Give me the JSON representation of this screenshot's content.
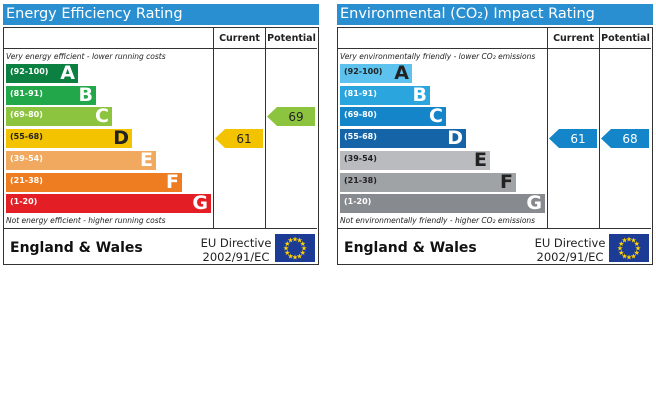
{
  "colors": {
    "title_bar": "#2a8fd0",
    "energy_bands": [
      "#0c8040",
      "#22a74a",
      "#8cc43f",
      "#f3c300",
      "#f1a85f",
      "#ee7d22",
      "#e31e25"
    ],
    "environment_bands": [
      "#5dc3ee",
      "#2aa5de",
      "#1585c9",
      "#1664a8",
      "#b9bbbe",
      "#a0a3a6",
      "#878a8e"
    ],
    "current_arrow": "#f3c300",
    "potential_arrow": "#8cc43f",
    "env_arrow": "#1585c9",
    "flag": "#1c3b94",
    "stars": "#ffd200"
  },
  "panels": [
    {
      "title": "Energy Efficiency Rating",
      "col_current": "Current",
      "col_potential": "Potential",
      "top_note": "Very energy efficient - lower running costs",
      "bottom_note": "Not energy efficient - higher running costs",
      "bands": [
        {
          "range": "(92-100)",
          "letter": "A"
        },
        {
          "range": "(81-91)",
          "letter": "B"
        },
        {
          "range": "(69-80)",
          "letter": "C"
        },
        {
          "range": "(55-68)",
          "letter": "D"
        },
        {
          "range": "(39-54)",
          "letter": "E"
        },
        {
          "range": "(21-38)",
          "letter": "F"
        },
        {
          "range": "(1-20)",
          "letter": "G"
        }
      ],
      "current": "61",
      "potential": "69",
      "region": "England & Wales",
      "directive_line1": "EU Directive",
      "directive_line2": "2002/91/EC"
    },
    {
      "title": "Environmental (CO₂) Impact Rating",
      "col_current": "Current",
      "col_potential": "Potential",
      "top_note": "Very environmentally friendly - lower CO₂ emissions",
      "bottom_note": "Not environmentally friendly - higher CO₂ emissions",
      "bands": [
        {
          "range": "(92-100)",
          "letter": "A"
        },
        {
          "range": "(81-91)",
          "letter": "B"
        },
        {
          "range": "(69-80)",
          "letter": "C"
        },
        {
          "range": "(55-68)",
          "letter": "D"
        },
        {
          "range": "(39-54)",
          "letter": "E"
        },
        {
          "range": "(21-38)",
          "letter": "F"
        },
        {
          "range": "(1-20)",
          "letter": "G"
        }
      ],
      "current": "61",
      "potential": "68",
      "region": "England & Wales",
      "directive_line1": "EU Directive",
      "directive_line2": "2002/91/EC"
    }
  ],
  "chart_data": [
    {
      "type": "bar",
      "title": "Energy Efficiency Rating",
      "categories": [
        "(92-100) A",
        "(81-91) B",
        "(69-80) C",
        "(55-68) D",
        "(39-54) E",
        "(21-38) F",
        "(1-20) G"
      ],
      "current": 61,
      "potential": 69
    },
    {
      "type": "bar",
      "title": "Environmental (CO₂) Impact Rating",
      "categories": [
        "(92-100) A",
        "(81-91) B",
        "(69-80) C",
        "(55-68) D",
        "(39-54) E",
        "(21-38) F",
        "(1-20) G"
      ],
      "current": 61,
      "potential": 68
    }
  ]
}
